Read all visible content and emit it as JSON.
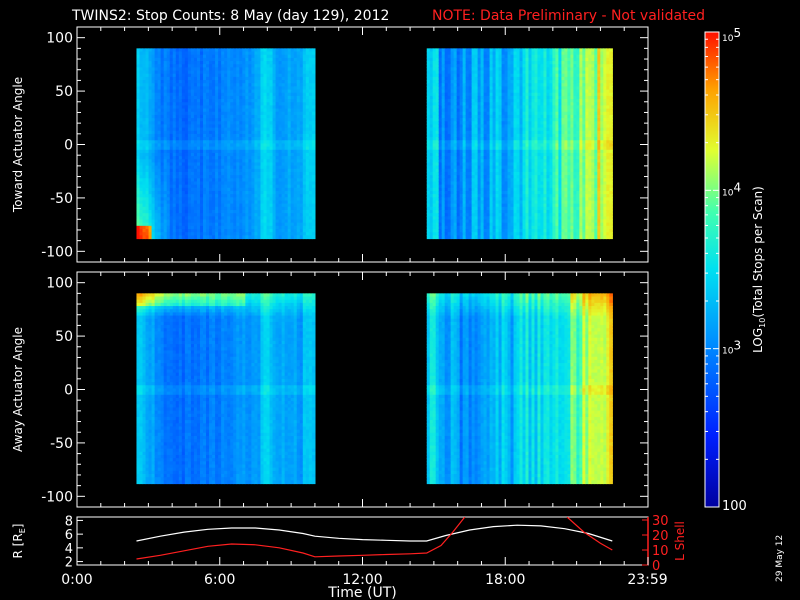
{
  "title": "TWINS2: Stop Counts:  8 May (day 129), 2012",
  "note": "NOTE: Data Preliminary - Not validated",
  "date_stamp": "29 May 12",
  "colors": {
    "background": "#000000",
    "axes": "#ffffff",
    "note": "#ff0000",
    "l_shell": "#ff0000",
    "r_line": "#ffffff"
  },
  "chart_data": [
    {
      "type": "heatmap",
      "ylabel": "Toward Actuator Angle",
      "ylim": [
        -110,
        110
      ],
      "yticks": [
        "100",
        "50",
        "0",
        "-50",
        "-100"
      ],
      "xlim": [
        0,
        24
      ],
      "data_blocks_hours": [
        [
          2.5,
          10.0
        ],
        [
          14.7,
          22.5
        ]
      ],
      "angle_range": [
        -88,
        90
      ]
    },
    {
      "type": "heatmap",
      "ylabel": "Away Actuator Angle",
      "ylim": [
        -110,
        110
      ],
      "yticks": [
        "100",
        "50",
        "0",
        "-50",
        "-100"
      ],
      "xlim": [
        0,
        24
      ],
      "data_blocks_hours": [
        [
          2.5,
          10.0
        ],
        [
          14.7,
          22.5
        ]
      ],
      "angle_range": [
        -88,
        90
      ]
    },
    {
      "type": "line",
      "xlabel": "Time (UT)",
      "xlim": [
        0,
        24
      ],
      "xticks": [
        "0:00",
        "6:00",
        "12:00",
        "18:00",
        "23:59"
      ],
      "ylabel_left": "R (RE)",
      "ylabel_left_main": "R [R",
      "ylabel_left_sub": "E",
      "ylabel_left_close": "]",
      "yticks_left": [
        "8",
        "6",
        "4",
        "2"
      ],
      "ylim_left": [
        1.5,
        8.5
      ],
      "ylabel_right": "L Shell",
      "yticks_right": [
        "30",
        "20",
        "10",
        "0"
      ],
      "ylim_right": [
        0,
        32
      ],
      "series": [
        {
          "name": "R",
          "x": [
            2.5,
            3.5,
            4.5,
            5.5,
            6.5,
            7.5,
            8.5,
            9.5,
            10.0,
            11,
            12,
            13,
            14,
            14.7,
            15.5,
            16.5,
            17.5,
            18.5,
            19.5,
            20.5,
            21.5,
            22.5
          ],
          "y": [
            5.0,
            5.7,
            6.3,
            6.7,
            6.9,
            6.9,
            6.6,
            6.1,
            5.7,
            5.4,
            5.2,
            5.1,
            5.0,
            5.0,
            5.8,
            6.6,
            7.1,
            7.3,
            7.2,
            6.8,
            6.1,
            5.0
          ]
        },
        {
          "name": "L Shell",
          "x": [
            2.5,
            3.5,
            4.5,
            5.5,
            6.5,
            7.5,
            8.5,
            9.5,
            10.0,
            11,
            12,
            13,
            14,
            14.7,
            15.3,
            15.8,
            16.3
          ],
          "y": [
            4.0,
            6.5,
            9.5,
            12.5,
            14.0,
            13.5,
            11.5,
            8.0,
            5.5,
            6.0,
            6.5,
            7.0,
            7.5,
            8.0,
            13.0,
            22.0,
            32.0
          ],
          "x2": [
            20.6,
            21.3,
            22.0,
            22.5
          ],
          "y2": [
            32.0,
            22.0,
            14.5,
            10.0
          ]
        }
      ]
    }
  ],
  "colorbar": {
    "label": "LOG10(Total Stops per Scan)",
    "label_main": "LOG",
    "label_sub": "10",
    "label_rest": "(Total Stops per Scan)",
    "ticks": [
      {
        "base": "10",
        "exp": "5",
        "value": 100000
      },
      {
        "base": "10",
        "exp": "4",
        "value": 10000
      },
      {
        "base": "10",
        "exp": "3",
        "value": 1000
      },
      {
        "base": "100",
        "exp": "",
        "value": 100
      }
    ],
    "range": [
      100,
      100000
    ]
  }
}
